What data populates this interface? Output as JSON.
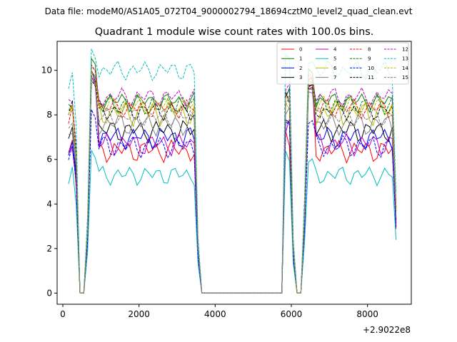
{
  "chart_data": {
    "type": "line",
    "suptitle": "Data file: modeM0/AS1A05_072T04_9000002794_18694cztM0_level2_quad_clean.evt",
    "title": "Quadrant 1 module wise count rates with 100.0s bins.",
    "x_offset_label": "+2.9022e8",
    "xlim": [
      -150,
      9150
    ],
    "ylim": [
      -0.5,
      11.3
    ],
    "x_ticks": [
      0,
      2000,
      4000,
      6000,
      8000
    ],
    "x_tick_labels": [
      "0",
      "2000",
      "4000",
      "6000",
      "8000"
    ],
    "y_ticks": [
      0,
      2,
      4,
      6,
      8,
      10
    ],
    "y_tick_labels": [
      "0",
      "2",
      "4",
      "6",
      "8",
      "10"
    ],
    "x_start": 150,
    "x_step": 100,
    "gaps": [
      [
        3,
        4
      ],
      [
        35,
        56
      ],
      [
        60,
        61
      ]
    ],
    "series": [
      {
        "name": "0",
        "color": "#ff0000",
        "dash": "solid",
        "level": 6.4,
        "amp": 0.35,
        "peak": 10.0
      },
      {
        "name": "1",
        "color": "#008000",
        "dash": "solid",
        "level": 8.6,
        "amp": 0.3,
        "peak": 10.5
      },
      {
        "name": "2",
        "color": "#0000ff",
        "dash": "solid",
        "level": 7.0,
        "amp": 0.35,
        "peak": 9.9
      },
      {
        "name": "3",
        "color": "#000000",
        "dash": "solid",
        "level": 7.3,
        "amp": 0.35,
        "peak": 9.8
      },
      {
        "name": "4",
        "color": "#bf00bf",
        "dash": "solid",
        "level": 6.7,
        "amp": 0.35,
        "peak": 9.7
      },
      {
        "name": "5",
        "color": "#00bfbf",
        "dash": "solid",
        "level": 5.3,
        "amp": 0.3,
        "peak": 6.4
      },
      {
        "name": "6",
        "color": "#bfbf00",
        "dash": "solid",
        "level": 8.1,
        "amp": 0.4,
        "peak": 10.2
      },
      {
        "name": "7",
        "color": "#808080",
        "dash": "solid",
        "level": 7.6,
        "amp": 0.35,
        "peak": 9.6
      },
      {
        "name": "8",
        "color": "#ff0000",
        "dash": "dashed",
        "level": 8.3,
        "amp": 0.3,
        "peak": 9.8
      },
      {
        "name": "9",
        "color": "#008000",
        "dash": "dashed",
        "level": 8.5,
        "amp": 0.3,
        "peak": 10.0
      },
      {
        "name": "10",
        "color": "#0000ff",
        "dash": "dashed",
        "level": 6.6,
        "amp": 0.35,
        "peak": 8.2
      },
      {
        "name": "11",
        "color": "#000000",
        "dash": "dashed",
        "level": 8.2,
        "amp": 0.3,
        "peak": 9.6
      },
      {
        "name": "12",
        "color": "#bf00bf",
        "dash": "dashed",
        "level": 8.8,
        "amp": 0.3,
        "peak": 10.2
      },
      {
        "name": "13",
        "color": "#00bfbf",
        "dash": "dashed",
        "level": 10.0,
        "amp": 0.3,
        "peak": 10.9
      },
      {
        "name": "14",
        "color": "#bfbf00",
        "dash": "dashed",
        "level": 8.4,
        "amp": 0.3,
        "peak": 10.0
      },
      {
        "name": "15",
        "color": "#808080",
        "dash": "dashed",
        "level": 7.9,
        "amp": 0.3,
        "peak": 9.7
      }
    ]
  }
}
